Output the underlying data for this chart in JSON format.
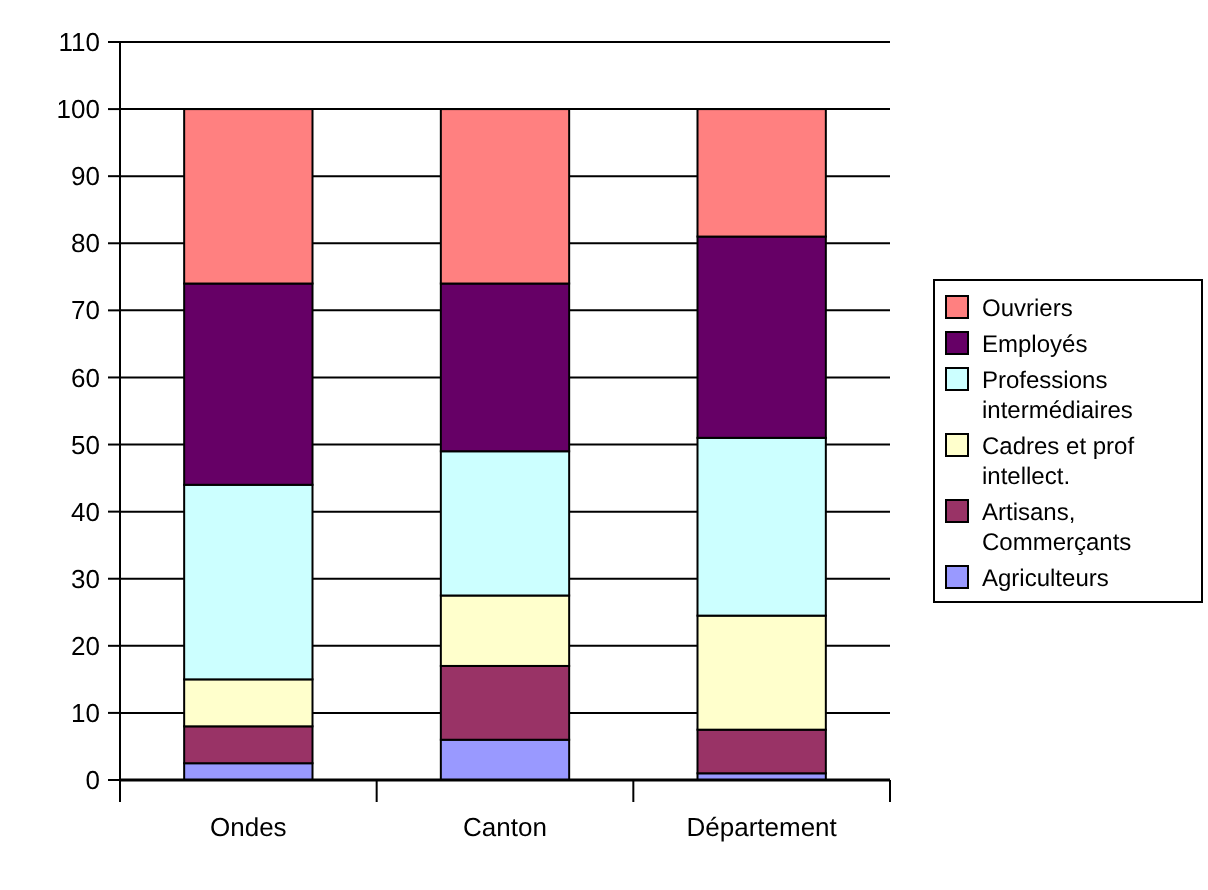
{
  "chart_data": {
    "type": "bar",
    "stacked": true,
    "categories": [
      "Ondes",
      "Canton",
      "Département"
    ],
    "series": [
      {
        "name": "Agriculteurs",
        "color": "#9999ff",
        "values": [
          2.5,
          6,
          1
        ]
      },
      {
        "name": "Artisans, Commerçants",
        "color": "#993366",
        "values": [
          5.5,
          11,
          6.5
        ]
      },
      {
        "name": "Cadres et prof intellect.",
        "color": "#ffffcc",
        "values": [
          7,
          10.5,
          17
        ]
      },
      {
        "name": "Professions intermédiaires",
        "color": "#ccffff",
        "values": [
          29,
          21.5,
          26.5
        ]
      },
      {
        "name": "Employés",
        "color": "#660066",
        "values": [
          30,
          25,
          30
        ]
      },
      {
        "name": "Ouvriers",
        "color": "#ff8080",
        "values": [
          26,
          26,
          19
        ]
      }
    ],
    "ylim": [
      0,
      110
    ],
    "yticks": [
      0,
      10,
      20,
      30,
      40,
      50,
      60,
      70,
      80,
      90,
      100,
      110
    ],
    "grid": "y",
    "legend": "right"
  }
}
